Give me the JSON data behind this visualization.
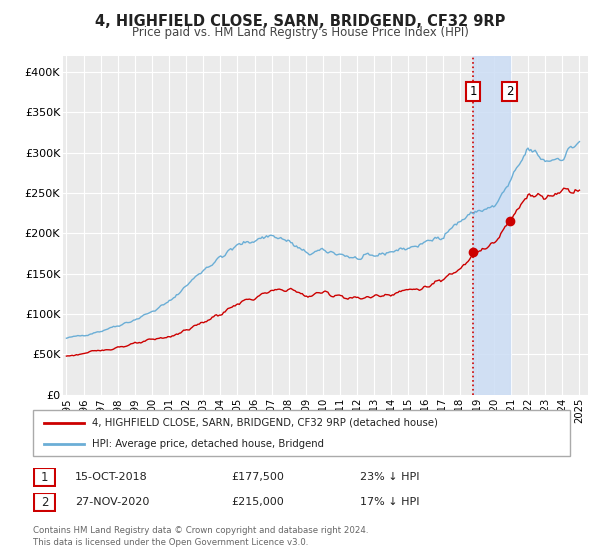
{
  "title": "4, HIGHFIELD CLOSE, SARN, BRIDGEND, CF32 9RP",
  "subtitle": "Price paid vs. HM Land Registry's House Price Index (HPI)",
  "ylim": [
    0,
    420000
  ],
  "xlim": [
    1994.8,
    2025.5
  ],
  "yticks": [
    0,
    50000,
    100000,
    150000,
    200000,
    250000,
    300000,
    350000,
    400000
  ],
  "ytick_labels": [
    "£0",
    "£50K",
    "£100K",
    "£150K",
    "£200K",
    "£250K",
    "£300K",
    "£350K",
    "£400K"
  ],
  "hpi_color": "#6baed6",
  "price_color": "#cc0000",
  "marker1_date": 2018.79,
  "marker1_price": 177500,
  "marker2_date": 2020.91,
  "marker2_price": 215000,
  "vline_date": 2018.79,
  "shade_start": 2018.79,
  "shade_end": 2020.91,
  "legend_label1": "4, HIGHFIELD CLOSE, SARN, BRIDGEND, CF32 9RP (detached house)",
  "legend_label2": "HPI: Average price, detached house, Bridgend",
  "table_row1": [
    "1",
    "15-OCT-2018",
    "£177,500",
    "23% ↓ HPI"
  ],
  "table_row2": [
    "2",
    "27-NOV-2020",
    "£215,000",
    "17% ↓ HPI"
  ],
  "footnote1": "Contains HM Land Registry data © Crown copyright and database right 2024.",
  "footnote2": "This data is licensed under the Open Government Licence v3.0.",
  "background_color": "#ffffff",
  "plot_bg_color": "#ebebeb",
  "grid_color": "#ffffff",
  "hpi_waypoints_x": [
    1995,
    1996,
    1997,
    1998,
    1999,
    2000,
    2001,
    2002,
    2003,
    2004,
    2005,
    2006,
    2007,
    2008,
    2009,
    2010,
    2011,
    2012,
    2013,
    2014,
    2015,
    2016,
    2017,
    2018,
    2019,
    2020,
    2021,
    2022,
    2023,
    2024,
    2025
  ],
  "hpi_waypoints_y": [
    70000,
    74000,
    79000,
    86000,
    93000,
    103000,
    115000,
    135000,
    155000,
    170000,
    185000,
    192000,
    198000,
    190000,
    175000,
    178000,
    175000,
    168000,
    172000,
    178000,
    182000,
    188000,
    198000,
    215000,
    228000,
    232000,
    265000,
    305000,
    290000,
    295000,
    315000
  ],
  "price_waypoints_x": [
    1995,
    1996,
    1997,
    1998,
    1999,
    2000,
    2001,
    2002,
    2003,
    2004,
    2005,
    2006,
    2007,
    2008,
    2009,
    2010,
    2011,
    2012,
    2013,
    2014,
    2015,
    2016,
    2017,
    2018,
    2018.79,
    2019,
    2020,
    2020.91,
    2021,
    2022,
    2023,
    2024,
    2025
  ],
  "price_waypoints_y": [
    48000,
    51000,
    55000,
    59000,
    63000,
    68000,
    72000,
    80000,
    90000,
    100000,
    113000,
    120000,
    128000,
    132000,
    122000,
    127000,
    123000,
    119000,
    122000,
    126000,
    130000,
    133000,
    142000,
    157000,
    177500,
    178000,
    186000,
    215000,
    215000,
    252000,
    243000,
    255000,
    255000
  ]
}
